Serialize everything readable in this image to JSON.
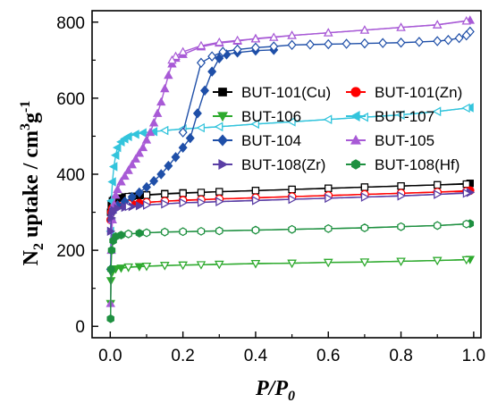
{
  "chart_data": {
    "type": "scatter",
    "title": "",
    "xlabel": {
      "main": "P/P",
      "sub": "0"
    },
    "ylabel": {
      "pre": "N",
      "sub": "2",
      "mid": " uptake / cm",
      "sup3": "3",
      "g": "g",
      "supm1": "-1"
    },
    "xlim": [
      -0.05,
      1.02
    ],
    "ylim": [
      -30,
      830
    ],
    "xticks": [
      "0.0",
      "0.2",
      "0.4",
      "0.6",
      "0.8",
      "1.0"
    ],
    "xtick_values": [
      0,
      0.2,
      0.4,
      0.6,
      0.8,
      1.0
    ],
    "yticks": [
      "0",
      "200",
      "400",
      "600",
      "800"
    ],
    "ytick_values": [
      0,
      200,
      400,
      600,
      800
    ],
    "legend_placement": "center",
    "series": [
      {
        "name": "BUT-101(Cu)",
        "color": "#000000",
        "marker": "square",
        "adsorption": [
          [
            0.001,
            300
          ],
          [
            0.003,
            320
          ],
          [
            0.006,
            330
          ],
          [
            0.01,
            333
          ],
          [
            0.02,
            337
          ],
          [
            0.04,
            340
          ],
          [
            0.06,
            342
          ],
          [
            0.08,
            344
          ],
          [
            0.1,
            346
          ],
          [
            0.15,
            349
          ],
          [
            0.2,
            351
          ],
          [
            0.3,
            354
          ],
          [
            0.4,
            357
          ],
          [
            0.5,
            360
          ],
          [
            0.6,
            363
          ],
          [
            0.7,
            366
          ],
          [
            0.8,
            369
          ],
          [
            0.9,
            372
          ],
          [
            0.99,
            376
          ]
        ],
        "desorption": [
          [
            0.98,
            374
          ],
          [
            0.9,
            372
          ],
          [
            0.8,
            369
          ],
          [
            0.7,
            366
          ],
          [
            0.6,
            363
          ],
          [
            0.5,
            360
          ],
          [
            0.4,
            357
          ],
          [
            0.3,
            354
          ],
          [
            0.25,
            352
          ],
          [
            0.2,
            350
          ],
          [
            0.15,
            348
          ],
          [
            0.1,
            345
          ],
          [
            0.05,
            341
          ]
        ]
      },
      {
        "name": "BUT-101(Zn)",
        "color": "#ff0000",
        "marker": "circle",
        "adsorption": [
          [
            0.001,
            280
          ],
          [
            0.003,
            300
          ],
          [
            0.006,
            310
          ],
          [
            0.01,
            315
          ],
          [
            0.02,
            318
          ],
          [
            0.04,
            320
          ],
          [
            0.06,
            322
          ],
          [
            0.08,
            324
          ],
          [
            0.1,
            326
          ],
          [
            0.15,
            329
          ],
          [
            0.2,
            332
          ],
          [
            0.3,
            335
          ],
          [
            0.4,
            338
          ],
          [
            0.5,
            341
          ],
          [
            0.6,
            344
          ],
          [
            0.7,
            347
          ],
          [
            0.8,
            350
          ],
          [
            0.9,
            353
          ],
          [
            0.99,
            357
          ]
        ],
        "desorption": [
          [
            0.98,
            355
          ],
          [
            0.9,
            353
          ],
          [
            0.8,
            350
          ],
          [
            0.7,
            347
          ],
          [
            0.6,
            344
          ],
          [
            0.5,
            341
          ],
          [
            0.4,
            338
          ],
          [
            0.3,
            335
          ],
          [
            0.25,
            333
          ],
          [
            0.2,
            331
          ],
          [
            0.15,
            329
          ],
          [
            0.1,
            326
          ],
          [
            0.05,
            322
          ]
        ]
      },
      {
        "name": "BUT-106",
        "color": "#2eaa2e",
        "marker": "triangle-down",
        "adsorption": [
          [
            0.001,
            60
          ],
          [
            0.002,
            120
          ],
          [
            0.004,
            140
          ],
          [
            0.008,
            148
          ],
          [
            0.015,
            151
          ],
          [
            0.03,
            153
          ],
          [
            0.05,
            155
          ],
          [
            0.08,
            157
          ],
          [
            0.1,
            158
          ],
          [
            0.15,
            160
          ],
          [
            0.2,
            161
          ],
          [
            0.3,
            163
          ],
          [
            0.4,
            165
          ],
          [
            0.5,
            166
          ],
          [
            0.6,
            168
          ],
          [
            0.7,
            169
          ],
          [
            0.8,
            171
          ],
          [
            0.9,
            173
          ],
          [
            0.99,
            176
          ]
        ],
        "desorption": [
          [
            0.98,
            175
          ],
          [
            0.9,
            173
          ],
          [
            0.8,
            171
          ],
          [
            0.7,
            169
          ],
          [
            0.6,
            168
          ],
          [
            0.5,
            166
          ],
          [
            0.4,
            165
          ],
          [
            0.3,
            163
          ],
          [
            0.25,
            162
          ],
          [
            0.2,
            161
          ],
          [
            0.15,
            160
          ],
          [
            0.1,
            158
          ],
          [
            0.05,
            156
          ]
        ]
      },
      {
        "name": "BUT-107",
        "color": "#33c4dc",
        "marker": "triangle-left",
        "adsorption": [
          [
            0.001,
            250
          ],
          [
            0.003,
            330
          ],
          [
            0.006,
            380
          ],
          [
            0.01,
            420
          ],
          [
            0.015,
            450
          ],
          [
            0.02,
            470
          ],
          [
            0.03,
            485
          ],
          [
            0.04,
            493
          ],
          [
            0.05,
            499
          ],
          [
            0.07,
            505
          ],
          [
            0.09,
            509
          ],
          [
            0.12,
            512
          ],
          [
            0.15,
            515
          ],
          [
            0.2,
            519
          ],
          [
            0.3,
            525
          ],
          [
            0.4,
            532
          ],
          [
            0.5,
            538
          ],
          [
            0.6,
            544
          ],
          [
            0.7,
            550
          ],
          [
            0.8,
            556
          ],
          [
            0.9,
            565
          ],
          [
            0.99,
            575
          ]
        ],
        "desorption": [
          [
            0.98,
            574
          ],
          [
            0.9,
            565
          ],
          [
            0.8,
            556
          ],
          [
            0.7,
            550
          ],
          [
            0.6,
            544
          ],
          [
            0.5,
            538
          ],
          [
            0.4,
            532
          ],
          [
            0.3,
            525
          ],
          [
            0.25,
            522
          ],
          [
            0.2,
            519
          ],
          [
            0.15,
            515
          ]
        ]
      },
      {
        "name": "BUT-104",
        "color": "#1f4fa8",
        "marker": "diamond",
        "adsorption": [
          [
            0.001,
            150
          ],
          [
            0.003,
            280
          ],
          [
            0.006,
            300
          ],
          [
            0.01,
            310
          ],
          [
            0.02,
            318
          ],
          [
            0.04,
            328
          ],
          [
            0.06,
            340
          ],
          [
            0.08,
            352
          ],
          [
            0.1,
            366
          ],
          [
            0.12,
            382
          ],
          [
            0.14,
            400
          ],
          [
            0.16,
            422
          ],
          [
            0.18,
            445
          ],
          [
            0.2,
            470
          ],
          [
            0.22,
            495
          ],
          [
            0.24,
            560
          ],
          [
            0.26,
            620
          ],
          [
            0.28,
            670
          ],
          [
            0.3,
            705
          ],
          [
            0.32,
            715
          ],
          [
            0.35,
            720
          ],
          [
            0.4,
            725
          ],
          [
            0.45,
            727
          ]
        ],
        "desorption": [
          [
            0.99,
            775
          ],
          [
            0.98,
            765
          ],
          [
            0.96,
            758
          ],
          [
            0.93,
            753
          ],
          [
            0.9,
            750
          ],
          [
            0.85,
            748
          ],
          [
            0.8,
            746
          ],
          [
            0.75,
            745
          ],
          [
            0.7,
            744
          ],
          [
            0.65,
            743
          ],
          [
            0.6,
            742
          ],
          [
            0.55,
            741
          ],
          [
            0.5,
            740
          ],
          [
            0.45,
            736
          ],
          [
            0.4,
            733
          ],
          [
            0.35,
            728
          ],
          [
            0.31,
            722
          ],
          [
            0.28,
            710
          ],
          [
            0.25,
            693
          ],
          [
            0.2,
            510
          ]
        ]
      },
      {
        "name": "BUT-105",
        "color": "#a85ad6",
        "marker": "triangle-up",
        "adsorption": [
          [
            0.001,
            60
          ],
          [
            0.003,
            200
          ],
          [
            0.006,
            280
          ],
          [
            0.01,
            320
          ],
          [
            0.015,
            345
          ],
          [
            0.02,
            360
          ],
          [
            0.03,
            380
          ],
          [
            0.04,
            395
          ],
          [
            0.05,
            410
          ],
          [
            0.06,
            425
          ],
          [
            0.07,
            440
          ],
          [
            0.08,
            455
          ],
          [
            0.09,
            470
          ],
          [
            0.1,
            490
          ],
          [
            0.11,
            510
          ],
          [
            0.12,
            535
          ],
          [
            0.13,
            560
          ],
          [
            0.14,
            590
          ],
          [
            0.15,
            625
          ],
          [
            0.16,
            660
          ],
          [
            0.17,
            690
          ],
          [
            0.18,
            705
          ],
          [
            0.2,
            715
          ],
          [
            0.25,
            735
          ],
          [
            0.3,
            745
          ],
          [
            0.35,
            750
          ],
          [
            0.4,
            757
          ],
          [
            0.5,
            765
          ],
          [
            0.6,
            772
          ],
          [
            0.7,
            779
          ],
          [
            0.8,
            786
          ],
          [
            0.9,
            793
          ],
          [
            0.99,
            805
          ]
        ],
        "desorption": [
          [
            0.98,
            803
          ],
          [
            0.9,
            793
          ],
          [
            0.8,
            786
          ],
          [
            0.7,
            779
          ],
          [
            0.6,
            772
          ],
          [
            0.5,
            765
          ],
          [
            0.45,
            760
          ],
          [
            0.4,
            756
          ],
          [
            0.35,
            752
          ],
          [
            0.3,
            747
          ],
          [
            0.25,
            738
          ],
          [
            0.2,
            722
          ],
          [
            0.18,
            710
          ],
          [
            0.17,
            700
          ]
        ]
      },
      {
        "name": "BUT-108(Zr)",
        "color": "#5b3fa5",
        "marker": "triangle-right",
        "adsorption": [
          [
            0.001,
            250
          ],
          [
            0.003,
            285
          ],
          [
            0.006,
            298
          ],
          [
            0.01,
            305
          ],
          [
            0.02,
            310
          ],
          [
            0.04,
            313
          ],
          [
            0.06,
            315
          ],
          [
            0.08,
            317
          ],
          [
            0.1,
            319
          ],
          [
            0.15,
            322
          ],
          [
            0.2,
            325
          ],
          [
            0.3,
            328
          ],
          [
            0.4,
            331
          ],
          [
            0.5,
            334
          ],
          [
            0.6,
            337
          ],
          [
            0.7,
            340
          ],
          [
            0.8,
            343
          ],
          [
            0.9,
            347
          ],
          [
            0.99,
            352
          ]
        ],
        "desorption": [
          [
            0.98,
            350
          ],
          [
            0.9,
            347
          ],
          [
            0.8,
            343
          ],
          [
            0.7,
            340
          ],
          [
            0.6,
            337
          ],
          [
            0.5,
            334
          ],
          [
            0.4,
            331
          ],
          [
            0.3,
            328
          ],
          [
            0.25,
            326
          ],
          [
            0.2,
            325
          ],
          [
            0.15,
            322
          ],
          [
            0.1,
            319
          ],
          [
            0.05,
            315
          ]
        ]
      },
      {
        "name": "BUT-108(Hf)",
        "color": "#1e9040",
        "marker": "hexagon",
        "adsorption": [
          [
            0.001,
            20
          ],
          [
            0.002,
            150
          ],
          [
            0.004,
            200
          ],
          [
            0.008,
            225
          ],
          [
            0.015,
            236
          ],
          [
            0.03,
            240
          ],
          [
            0.05,
            243
          ],
          [
            0.08,
            245
          ],
          [
            0.1,
            246
          ],
          [
            0.15,
            248
          ],
          [
            0.2,
            249
          ],
          [
            0.3,
            251
          ],
          [
            0.4,
            253
          ],
          [
            0.5,
            255
          ],
          [
            0.6,
            257
          ],
          [
            0.7,
            259
          ],
          [
            0.8,
            262
          ],
          [
            0.9,
            265
          ],
          [
            0.99,
            270
          ]
        ],
        "desorption": [
          [
            0.98,
            269
          ],
          [
            0.9,
            265
          ],
          [
            0.8,
            262
          ],
          [
            0.7,
            259
          ],
          [
            0.6,
            257
          ],
          [
            0.5,
            255
          ],
          [
            0.4,
            253
          ],
          [
            0.3,
            251
          ],
          [
            0.25,
            250
          ],
          [
            0.2,
            249
          ],
          [
            0.15,
            248
          ],
          [
            0.1,
            246
          ],
          [
            0.05,
            243
          ]
        ]
      }
    ]
  }
}
